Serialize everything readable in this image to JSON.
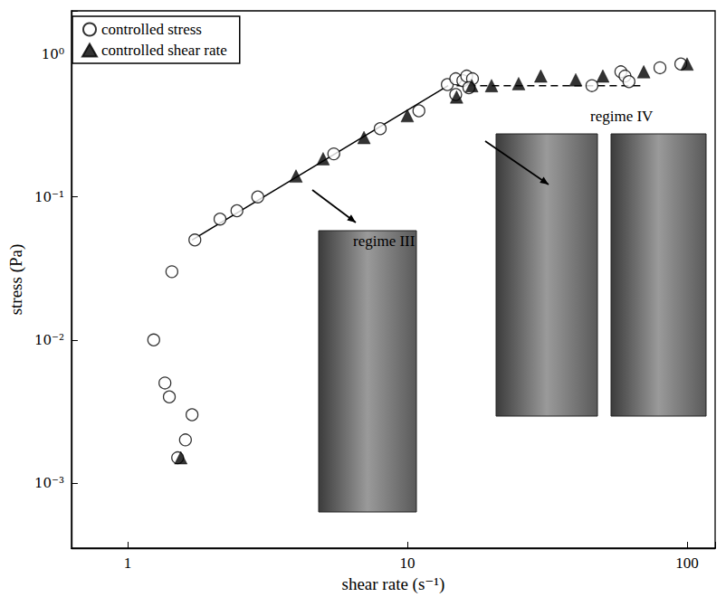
{
  "chart_data": {
    "type": "scatter",
    "x_label": "shear rate (s⁻¹)",
    "y_label": "stress (Pa)",
    "log": true,
    "grid": false,
    "legend": "upper left",
    "xlim": [
      0.63,
      126
    ],
    "ylim": [
      0.00035,
      2
    ],
    "xticks": [
      1,
      10,
      100
    ],
    "yticks": [
      {
        "value": 0.001,
        "label": "10⁻³"
      },
      {
        "value": 0.01,
        "label": "10⁻²"
      },
      {
        "value": 0.1,
        "label": "10⁻¹"
      },
      {
        "value": 1,
        "label": "10⁰"
      }
    ],
    "series": [
      {
        "name": "controlled stress",
        "color": "#000000",
        "marker": "open_circle",
        "x": [
          1.24,
          1.44,
          1.36,
          1.41,
          1.7,
          1.61,
          1.51,
          1.74,
          2.14,
          2.46,
          2.92,
          5.46,
          8.0,
          11.0,
          13.9,
          14.9,
          15.8,
          16.3,
          17.1,
          16.6,
          14.9,
          45.7,
          58,
          60,
          62,
          80,
          95
        ],
        "values": [
          0.01,
          0.03,
          0.005,
          0.004,
          0.003,
          0.002,
          0.0015,
          0.05,
          0.07,
          0.08,
          0.1,
          0.2,
          0.3,
          0.4,
          0.61,
          0.67,
          0.65,
          0.7,
          0.67,
          0.58,
          0.52,
          0.6,
          0.75,
          0.7,
          0.64,
          0.8,
          0.85
        ]
      },
      {
        "name": "controlled shear rate",
        "color": "#000000",
        "marker": "triangle",
        "x": [
          1.55,
          4.0,
          5.0,
          7.0,
          10.0,
          15.0,
          17.0,
          20.0,
          25.0,
          30.0,
          40.0,
          50.0,
          70.0,
          100.0
        ],
        "values": [
          0.0015,
          0.14,
          0.185,
          0.26,
          0.37,
          0.5,
          0.6,
          0.6,
          0.62,
          0.7,
          0.66,
          0.7,
          0.75,
          0.85
        ]
      }
    ],
    "fit_lines": [
      {
        "x": [
          1.7,
          14
        ],
        "values": [
          0.05,
          0.6
        ],
        "line_style": "solid",
        "color": "#000000"
      },
      {
        "x": [
          15,
          70
        ],
        "values": [
          0.6,
          0.6
        ],
        "line_style": "dashed",
        "color": "#000000"
      }
    ],
    "annotations": [
      "regime III",
      "regime IV"
    ]
  }
}
